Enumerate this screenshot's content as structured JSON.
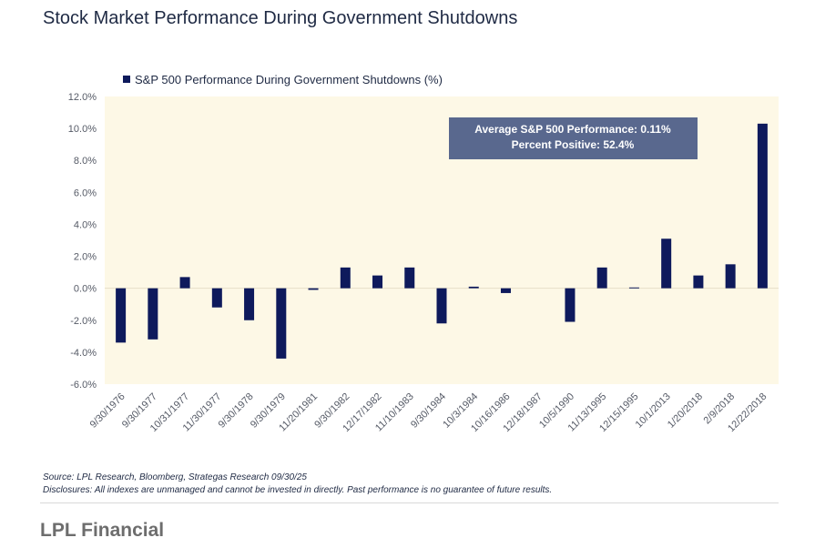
{
  "chart_data": {
    "type": "bar",
    "title": "Stock Market Performance During Government Shutdowns",
    "legend": "S&P 500 Performance During Government Shutdowns (%)",
    "categories": [
      "9/30/1976",
      "9/30/1977",
      "10/31/1977",
      "11/30/1977",
      "9/30/1978",
      "9/30/1979",
      "11/20/1981",
      "9/30/1982",
      "12/17/1982",
      "11/10/1983",
      "9/30/1984",
      "10/3/1984",
      "10/16/1986",
      "12/18/1987",
      "10/5/1990",
      "11/13/1995",
      "12/15/1995",
      "10/1/2013",
      "1/20/2018",
      "2/9/2018",
      "12/22/2018"
    ],
    "series": [
      {
        "name": "S&P 500 Performance During Government Shutdowns (%)",
        "values": [
          -3.4,
          -3.2,
          0.7,
          -1.2,
          -2.0,
          -4.4,
          -0.1,
          1.3,
          0.8,
          1.3,
          -2.2,
          0.1,
          -0.3,
          0.0,
          -2.1,
          1.3,
          0.05,
          3.1,
          0.8,
          1.5,
          10.3
        ]
      }
    ],
    "ylim": [
      -6,
      12
    ],
    "yticks": [
      -6,
      -4,
      -2,
      0,
      2,
      4,
      6,
      8,
      10,
      12
    ],
    "ytick_labels": [
      "-6.0%",
      "-4.0%",
      "-2.0%",
      "0.0%",
      "2.0%",
      "4.0%",
      "6.0%",
      "8.0%",
      "10.0%",
      "12.0%"
    ],
    "annotation": {
      "line1": "Average S&P 500 Performance: 0.11%",
      "line2": "Percent Positive: 52.4%"
    },
    "colors": {
      "bar": "#0e1a5c",
      "plot_bg": "#fdf8e6",
      "annotation_bg": "#59688e",
      "text": "#1f2a44"
    }
  },
  "source_text": "Source: LPL Research, Bloomberg, Strategas Research 09/30/25",
  "disclosure_text": "Disclosures: All indexes are unmanaged and cannot be invested in directly. Past performance is no guarantee of future results.",
  "footer_text": "LPL Financial"
}
